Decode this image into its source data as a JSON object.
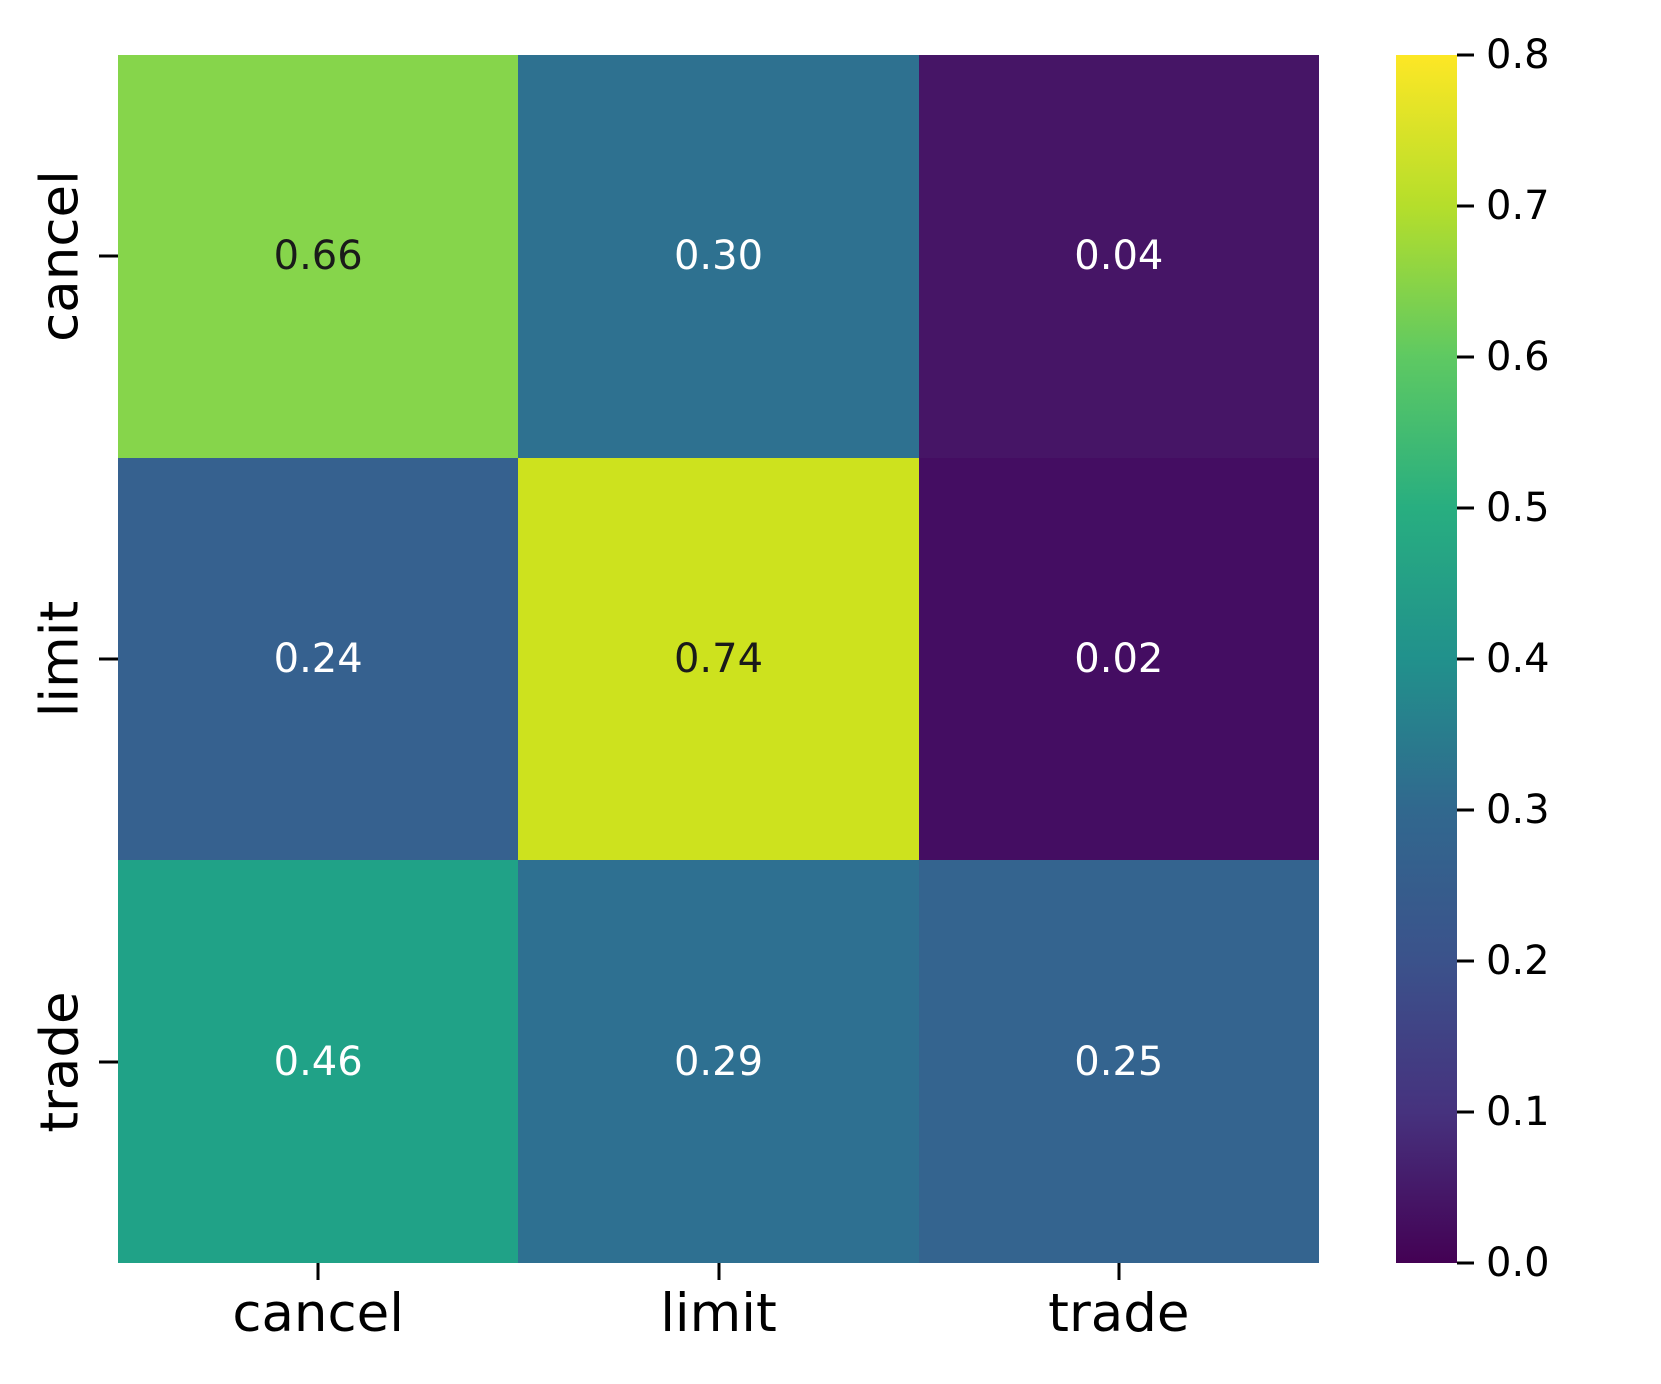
{
  "chart_data": {
    "type": "heatmap",
    "title": "",
    "xlabel": "",
    "ylabel": "",
    "x_categories": [
      "cancel",
      "limit",
      "trade"
    ],
    "y_categories": [
      "cancel",
      "limit",
      "trade"
    ],
    "matrix": [
      [
        0.66,
        0.3,
        0.04
      ],
      [
        0.24,
        0.74,
        0.02
      ],
      [
        0.46,
        0.29,
        0.25
      ]
    ],
    "cell_labels": [
      [
        "0.66",
        "0.30",
        "0.04"
      ],
      [
        "0.24",
        "0.74",
        "0.02"
      ],
      [
        "0.46",
        "0.29",
        "0.25"
      ]
    ],
    "cell_colors": [
      [
        "#86d54b",
        "#2e7190",
        "#461566"
      ],
      [
        "#36618f",
        "#cde21e",
        "#440d62"
      ],
      [
        "#20a287",
        "#2e7091",
        "#34648f"
      ]
    ],
    "cell_text_colors": [
      [
        "#1a1a1a",
        "#ffffff",
        "#ffffff"
      ],
      [
        "#ffffff",
        "#1a1a1a",
        "#ffffff"
      ],
      [
        "#ffffff",
        "#ffffff",
        "#ffffff"
      ]
    ],
    "colormap": "viridis",
    "vmin": 0.0,
    "vmax": 0.8,
    "colorbar_tick_labels": [
      "0.8",
      "0.7",
      "0.6",
      "0.5",
      "0.4",
      "0.3",
      "0.2",
      "0.1",
      "0.0"
    ],
    "colorbar_position": "right",
    "grid": false,
    "legend": false,
    "viridis_gradient_stops_bottom_to_top": [
      "#440154",
      "#46327e",
      "#3b528b",
      "#31688e",
      "#21918c",
      "#28ae80",
      "#5ec962",
      "#b5de2b",
      "#fde725"
    ]
  }
}
